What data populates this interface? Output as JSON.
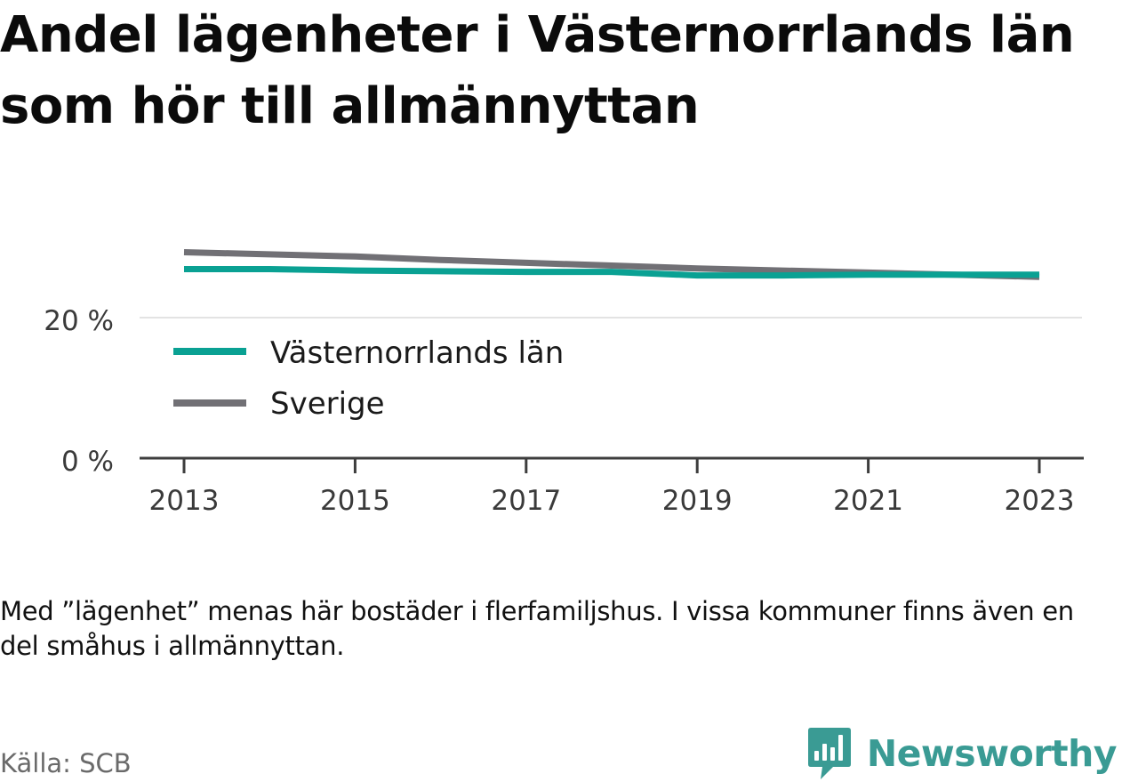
{
  "title": "Andel lägenheter i Västernorrlands län som hör till allmännyttan",
  "note": "Med ”lägenhet” menas här bostäder i flerfamiljshus. I vissa kommuner finns även en del småhus i allmännyttan.",
  "source": "Källa: SCB",
  "brand": {
    "name": "Newsworthy",
    "icon": "bar-chart-speech-bubble-icon",
    "color": "#3a9b94"
  },
  "chart_data": {
    "type": "line",
    "x": [
      2013,
      2014,
      2015,
      2016,
      2017,
      2018,
      2019,
      2020,
      2021,
      2022,
      2023
    ],
    "series": [
      {
        "name": "Västernorrlands län",
        "color": "#0aa193",
        "values": [
          26.9,
          26.9,
          26.7,
          26.6,
          26.5,
          26.5,
          26.0,
          26.0,
          26.1,
          26.1,
          26.1
        ]
      },
      {
        "name": "Sverige",
        "color": "#717075",
        "values": [
          29.3,
          29.0,
          28.7,
          28.2,
          27.8,
          27.4,
          27.0,
          26.7,
          26.4,
          26.1,
          25.8
        ]
      }
    ],
    "x_ticks": [
      "2013",
      "2015",
      "2017",
      "2019",
      "2021",
      "2023"
    ],
    "y_ticks": [
      0,
      20
    ],
    "y_tick_labels": [
      "0 %",
      "20 %"
    ],
    "ylim": [
      0,
      30
    ],
    "grid": true,
    "legend_position": "inside-left"
  }
}
